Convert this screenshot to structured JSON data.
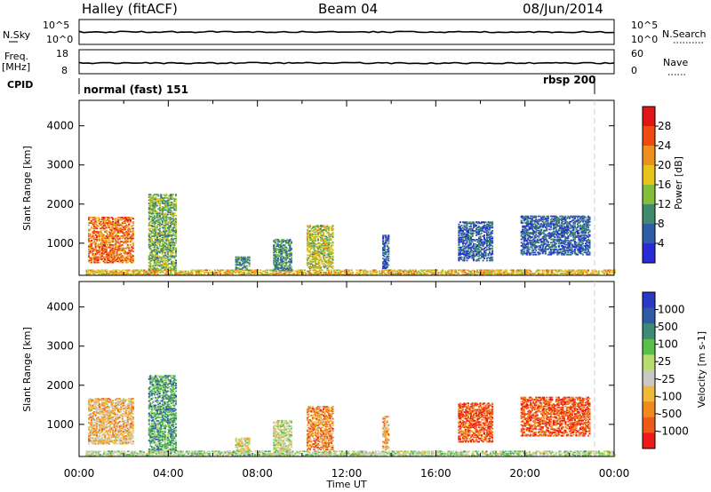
{
  "header": {
    "site": "Halley (fitACF)",
    "beam": "Beam 04",
    "date": "08/Jun/2014"
  },
  "status_panel": {
    "nsky_label": "N.Sky",
    "nsearch_label": "N.Search",
    "nsky_ticks": [
      "10^5",
      "10^0"
    ],
    "nsearch_ticks": [
      "10^5",
      "10^0"
    ],
    "freq_label_1": "Freq.",
    "freq_label_2": "[MHz]",
    "freq_ticks": [
      "18",
      "8"
    ],
    "nave_label": "Nave",
    "nave_ticks": [
      "60",
      "0"
    ],
    "cpid_label": "CPID",
    "cpid_modes": [
      {
        "label": "normal (fast) 151",
        "start_hour": 0
      },
      {
        "label": "rbsp 200",
        "start_hour": 23
      }
    ]
  },
  "axes": {
    "xlabel": "Time UT",
    "x_ticks": [
      "00:00",
      "04:00",
      "08:00",
      "12:00",
      "16:00",
      "20:00",
      "00:00"
    ],
    "xlim_hours": [
      0,
      24
    ],
    "ylabel": "Slant Range [km]",
    "y_ticks": [
      4000,
      3000,
      2000,
      1000
    ],
    "ylim_km": [
      180,
      4650
    ]
  },
  "colors": {
    "power": [
      "#2a2ad6",
      "#2f5ea8",
      "#3e8a6a",
      "#84bd3a",
      "#e6c21a",
      "#f0901c",
      "#ee4a12",
      "#e01616"
    ],
    "velocity": [
      "#ee1a1a",
      "#ef5a16",
      "#f08a1c",
      "#f2b83a",
      "#c8c8c8",
      "#b8dc70",
      "#58c04a",
      "#3f8a74",
      "#2e5aa8",
      "#2a38c8"
    ]
  },
  "chart_data": [
    {
      "type": "heatmap",
      "panel": "power",
      "colorbar_label": "Power [dB]",
      "colorbar_ticks": [
        28,
        24,
        20,
        16,
        12,
        8,
        4
      ],
      "clim": [
        0,
        32
      ],
      "xlabel": "",
      "ylabel": "Slant Range [km]",
      "xlim": [
        0,
        24
      ],
      "ylim": [
        180,
        4650
      ],
      "regions": [
        {
          "t": [
            0.4,
            2.4
          ],
          "r": [
            500,
            1650
          ],
          "level": 0.75
        },
        {
          "t": [
            3.1,
            4.3
          ],
          "r": [
            300,
            2250
          ],
          "level": 0.4
        },
        {
          "t": [
            0.3,
            24
          ],
          "r": [
            190,
            320
          ],
          "level": 0.6
        },
        {
          "t": [
            7.0,
            7.6
          ],
          "r": [
            300,
            650
          ],
          "level": 0.3
        },
        {
          "t": [
            8.7,
            9.5
          ],
          "r": [
            300,
            1100
          ],
          "level": 0.3
        },
        {
          "t": [
            10.2,
            11.4
          ],
          "r": [
            350,
            1450
          ],
          "level": 0.5
        },
        {
          "t": [
            13.6,
            13.9
          ],
          "r": [
            350,
            1200
          ],
          "level": 0.2
        },
        {
          "t": [
            17.0,
            18.5
          ],
          "r": [
            550,
            1550
          ],
          "level": 0.2
        },
        {
          "t": [
            19.8,
            22.9
          ],
          "r": [
            700,
            1700
          ],
          "level": 0.2
        }
      ]
    },
    {
      "type": "heatmap",
      "panel": "velocity",
      "colorbar_label": "Velocity [m s-1]",
      "colorbar_ticks": [
        1000,
        500,
        100,
        25,
        -25,
        -100,
        -500,
        -1000
      ],
      "xlabel": "Time UT",
      "ylabel": "Slant Range [km]",
      "xlim": [
        0,
        24
      ],
      "ylim": [
        180,
        4650
      ],
      "regions": [
        {
          "t": [
            0.4,
            2.4
          ],
          "r": [
            500,
            1650
          ],
          "level": 0.35
        },
        {
          "t": [
            3.1,
            4.3
          ],
          "r": [
            300,
            2250
          ],
          "level": 0.7
        },
        {
          "t": [
            0.3,
            24
          ],
          "r": [
            190,
            320
          ],
          "level": 0.55
        },
        {
          "t": [
            7.0,
            7.6
          ],
          "r": [
            300,
            650
          ],
          "level": 0.45
        },
        {
          "t": [
            8.7,
            9.5
          ],
          "r": [
            300,
            1100
          ],
          "level": 0.5
        },
        {
          "t": [
            10.2,
            11.4
          ],
          "r": [
            350,
            1450
          ],
          "level": 0.25
        },
        {
          "t": [
            13.6,
            13.9
          ],
          "r": [
            350,
            1200
          ],
          "level": 0.3
        },
        {
          "t": [
            17.0,
            18.5
          ],
          "r": [
            550,
            1550
          ],
          "level": 0.15
        },
        {
          "t": [
            19.8,
            22.9
          ],
          "r": [
            700,
            1700
          ],
          "level": 0.15
        }
      ]
    }
  ]
}
